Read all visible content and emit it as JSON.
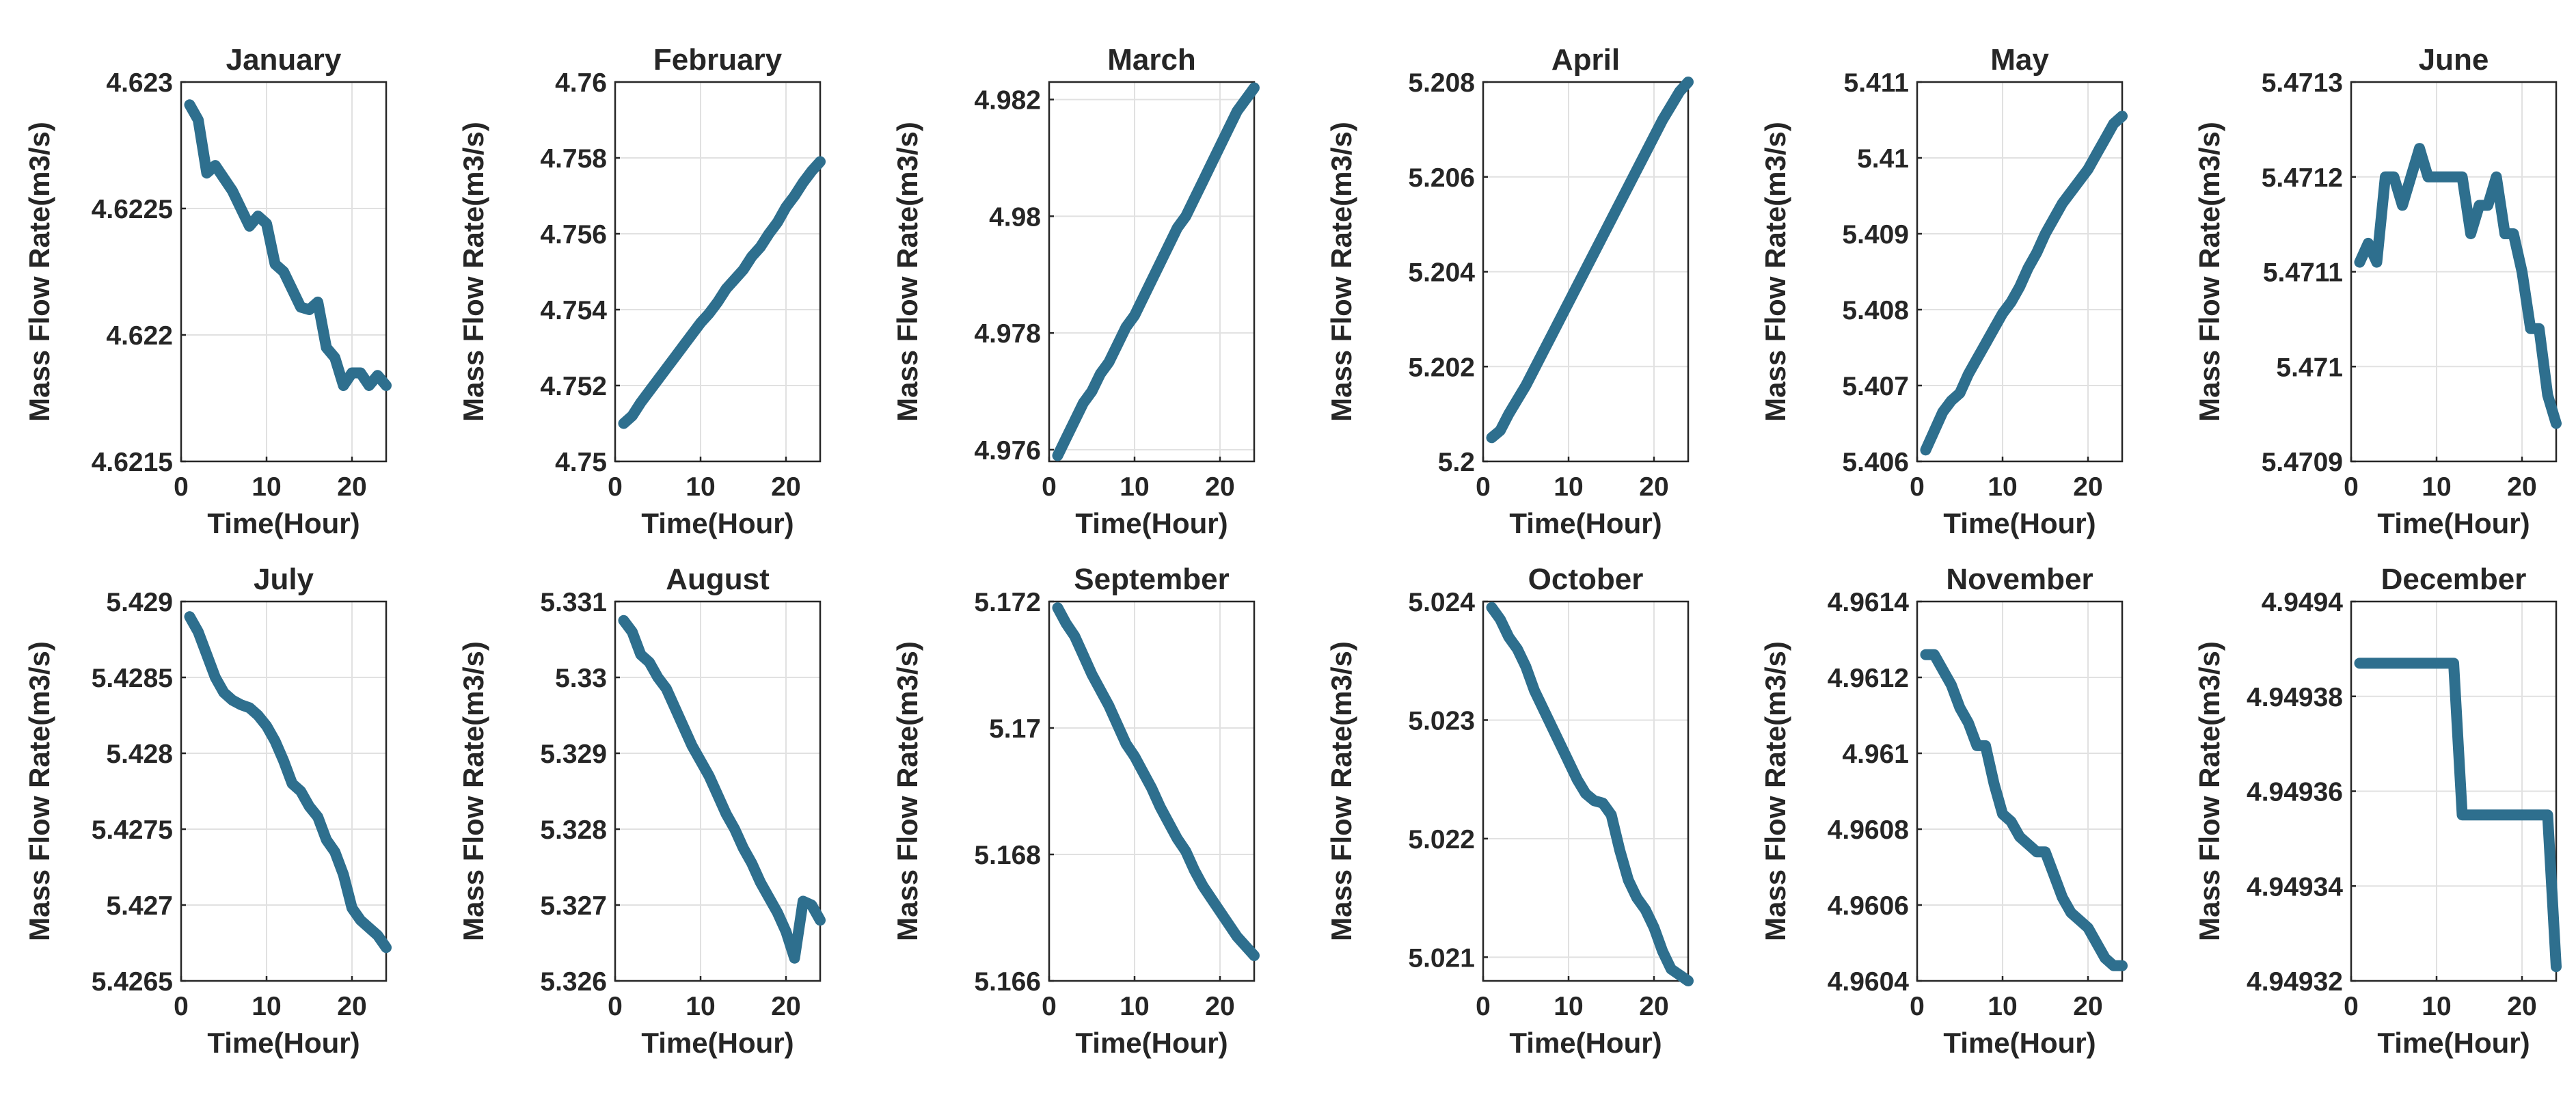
{
  "colors": {
    "line": "#2e6f8e",
    "axis": "#262626",
    "grid": "#e1e1e1"
  },
  "xlabel": "Time(Hour)",
  "ylabel": "Mass Flow Rate(m3/s)",
  "chart_data": [
    {
      "type": "line",
      "title": "January",
      "xlabel": "Time(Hour)",
      "ylabel": "Mass Flow Rate(m3/s)",
      "grid": true,
      "xlim": [
        0,
        24
      ],
      "xticks": [
        0,
        10,
        20
      ],
      "xtick_labels": [
        "0",
        "10",
        "20"
      ],
      "ylim": [
        4.6215,
        4.623
      ],
      "yticks": [
        4.6215,
        4.622,
        4.6225,
        4.623
      ],
      "ytick_labels": [
        "4.6215",
        "4.622",
        "4.6225",
        "4.623"
      ],
      "x": [
        1,
        2,
        3,
        4,
        5,
        6,
        7,
        8,
        9,
        10,
        11,
        12,
        13,
        14,
        15,
        16,
        17,
        18,
        19,
        20,
        21,
        22,
        23,
        24
      ],
      "y": [
        4.62291,
        4.62285,
        4.62264,
        4.62267,
        4.62262,
        4.62257,
        4.6225,
        4.62243,
        4.62247,
        4.62244,
        4.62228,
        4.62225,
        4.62218,
        4.62211,
        4.6221,
        4.62213,
        4.62195,
        4.62191,
        4.6218,
        4.62185,
        4.62185,
        4.6218,
        4.62184,
        4.6218
      ]
    },
    {
      "type": "line",
      "title": "February",
      "xlabel": "Time(Hour)",
      "ylabel": "Mass Flow Rate(m3/s)",
      "grid": true,
      "xlim": [
        0,
        24
      ],
      "xticks": [
        0,
        10,
        20
      ],
      "xtick_labels": [
        "0",
        "10",
        "20"
      ],
      "ylim": [
        4.75,
        4.76
      ],
      "yticks": [
        4.75,
        4.752,
        4.754,
        4.756,
        4.758,
        4.76
      ],
      "ytick_labels": [
        "4.75",
        "4.752",
        "4.754",
        "4.756",
        "4.758",
        "4.76"
      ],
      "x": [
        1,
        2,
        3,
        4,
        5,
        6,
        7,
        8,
        9,
        10,
        11,
        12,
        13,
        14,
        15,
        16,
        17,
        18,
        19,
        20,
        21,
        22,
        23,
        24
      ],
      "y": [
        4.751,
        4.7512,
        4.75155,
        4.75185,
        4.75215,
        4.75245,
        4.75275,
        4.75305,
        4.75335,
        4.75365,
        4.7539,
        4.7542,
        4.75455,
        4.7548,
        4.75505,
        4.7554,
        4.75565,
        4.756,
        4.7563,
        4.7567,
        4.757,
        4.75735,
        4.75765,
        4.7579
      ]
    },
    {
      "type": "line",
      "title": "March",
      "xlabel": "Time(Hour)",
      "ylabel": "Mass Flow Rate(m3/s)",
      "grid": true,
      "xlim": [
        0,
        24
      ],
      "xticks": [
        0,
        10,
        20
      ],
      "xtick_labels": [
        "0",
        "10",
        "20"
      ],
      "ylim": [
        4.9758,
        4.9823
      ],
      "yticks": [
        4.976,
        4.978,
        4.98,
        4.982
      ],
      "ytick_labels": [
        "4.976",
        "4.978",
        "4.98",
        "4.982"
      ],
      "x": [
        1,
        2,
        3,
        4,
        5,
        6,
        7,
        8,
        9,
        10,
        11,
        12,
        13,
        14,
        15,
        16,
        17,
        18,
        19,
        20,
        21,
        22,
        23,
        24
      ],
      "y": [
        4.9759,
        4.9762,
        4.9765,
        4.9768,
        4.977,
        4.9773,
        4.9775,
        4.9778,
        4.9781,
        4.9783,
        4.9786,
        4.9789,
        4.9792,
        4.9795,
        4.9798,
        4.98,
        4.9803,
        4.9806,
        4.9809,
        4.9812,
        4.9815,
        4.9818,
        4.982,
        4.9822
      ]
    },
    {
      "type": "line",
      "title": "April",
      "xlabel": "Time(Hour)",
      "ylabel": "Mass Flow Rate(m3/s)",
      "grid": true,
      "xlim": [
        0,
        24
      ],
      "xticks": [
        0,
        10,
        20
      ],
      "xtick_labels": [
        "0",
        "10",
        "20"
      ],
      "ylim": [
        5.2,
        5.208
      ],
      "yticks": [
        5.2,
        5.202,
        5.204,
        5.206,
        5.208
      ],
      "ytick_labels": [
        "5.2",
        "5.202",
        "5.204",
        "5.206",
        "5.208"
      ],
      "x": [
        1,
        2,
        3,
        4,
        5,
        6,
        7,
        8,
        9,
        10,
        11,
        12,
        13,
        14,
        15,
        16,
        17,
        18,
        19,
        20,
        21,
        22,
        23,
        24
      ],
      "y": [
        5.2005,
        5.20065,
        5.201,
        5.2013,
        5.2016,
        5.20195,
        5.2023,
        5.20265,
        5.203,
        5.20335,
        5.2037,
        5.20405,
        5.2044,
        5.20475,
        5.2051,
        5.20545,
        5.2058,
        5.20615,
        5.2065,
        5.20685,
        5.2072,
        5.2075,
        5.2078,
        5.208
      ]
    },
    {
      "type": "line",
      "title": "May",
      "xlabel": "Time(Hour)",
      "ylabel": "Mass Flow Rate(m3/s)",
      "grid": true,
      "xlim": [
        0,
        24
      ],
      "xticks": [
        0,
        10,
        20
      ],
      "xtick_labels": [
        "0",
        "10",
        "20"
      ],
      "ylim": [
        5.406,
        5.411
      ],
      "yticks": [
        5.406,
        5.407,
        5.408,
        5.409,
        5.41,
        5.411
      ],
      "ytick_labels": [
        "5.406",
        "5.407",
        "5.408",
        "5.409",
        "5.41",
        "5.411"
      ],
      "x": [
        1,
        2,
        3,
        4,
        5,
        6,
        7,
        8,
        9,
        10,
        11,
        12,
        13,
        14,
        15,
        16,
        17,
        18,
        19,
        20,
        21,
        22,
        23,
        24
      ],
      "y": [
        5.40615,
        5.4064,
        5.40665,
        5.4068,
        5.4069,
        5.40715,
        5.40735,
        5.40755,
        5.40775,
        5.40795,
        5.4081,
        5.4083,
        5.40855,
        5.40875,
        5.409,
        5.4092,
        5.4094,
        5.40955,
        5.4097,
        5.40985,
        5.41005,
        5.41025,
        5.41045,
        5.41055
      ]
    },
    {
      "type": "line",
      "title": "June",
      "xlabel": "Time(Hour)",
      "ylabel": "Mass Flow Rate(m3/s)",
      "grid": true,
      "xlim": [
        0,
        24
      ],
      "xticks": [
        0,
        10,
        20
      ],
      "xtick_labels": [
        "0",
        "10",
        "20"
      ],
      "ylim": [
        5.4709,
        5.4713
      ],
      "yticks": [
        5.4709,
        5.471,
        5.4711,
        5.4712,
        5.4713
      ],
      "ytick_labels": [
        "5.4709",
        "5.471",
        "5.4711",
        "5.4712",
        "5.4713"
      ],
      "x": [
        1,
        2,
        3,
        4,
        5,
        6,
        7,
        8,
        9,
        10,
        11,
        12,
        13,
        14,
        15,
        16,
        17,
        18,
        19,
        20,
        21,
        22,
        23,
        24
      ],
      "y": [
        5.47111,
        5.47113,
        5.47111,
        5.4712,
        5.4712,
        5.47117,
        5.4712,
        5.47123,
        5.4712,
        5.4712,
        5.4712,
        5.4712,
        5.4712,
        5.47114,
        5.47117,
        5.47117,
        5.4712,
        5.47114,
        5.47114,
        5.4711,
        5.47104,
        5.47104,
        5.47097,
        5.47094
      ]
    },
    {
      "type": "line",
      "title": "July",
      "xlabel": "Time(Hour)",
      "ylabel": "Mass Flow Rate(m3/s)",
      "grid": true,
      "xlim": [
        0,
        24
      ],
      "xticks": [
        0,
        10,
        20
      ],
      "xtick_labels": [
        "0",
        "10",
        "20"
      ],
      "ylim": [
        5.4265,
        5.429
      ],
      "yticks": [
        5.4265,
        5.427,
        5.4275,
        5.428,
        5.4285,
        5.429
      ],
      "ytick_labels": [
        "5.4265",
        "5.427",
        "5.4275",
        "5.428",
        "5.4285",
        "5.429"
      ],
      "x": [
        1,
        2,
        3,
        4,
        5,
        6,
        7,
        8,
        9,
        10,
        11,
        12,
        13,
        14,
        15,
        16,
        17,
        18,
        19,
        20,
        21,
        22,
        23,
        24
      ],
      "y": [
        5.4289,
        5.4288,
        5.42865,
        5.4285,
        5.4284,
        5.42835,
        5.42832,
        5.4283,
        5.42825,
        5.42818,
        5.42808,
        5.42795,
        5.4278,
        5.42775,
        5.42765,
        5.42758,
        5.42743,
        5.42735,
        5.4272,
        5.42698,
        5.4269,
        5.42685,
        5.4268,
        5.42672
      ]
    },
    {
      "type": "line",
      "title": "August",
      "xlabel": "Time(Hour)",
      "ylabel": "Mass Flow Rate(m3/s)",
      "grid": true,
      "xlim": [
        0,
        24
      ],
      "xticks": [
        0,
        10,
        20
      ],
      "xtick_labels": [
        "0",
        "10",
        "20"
      ],
      "ylim": [
        5.326,
        5.331
      ],
      "yticks": [
        5.326,
        5.327,
        5.328,
        5.329,
        5.33,
        5.331
      ],
      "ytick_labels": [
        "5.326",
        "5.327",
        "5.328",
        "5.329",
        "5.33",
        "5.331"
      ],
      "x": [
        1,
        2,
        3,
        4,
        5,
        6,
        7,
        8,
        9,
        10,
        11,
        12,
        13,
        14,
        15,
        16,
        17,
        18,
        19,
        20,
        21,
        22,
        23,
        24
      ],
      "y": [
        5.33075,
        5.3306,
        5.3303,
        5.3302,
        5.33,
        5.32985,
        5.3296,
        5.32935,
        5.3291,
        5.3289,
        5.3287,
        5.32845,
        5.3282,
        5.328,
        5.32775,
        5.32755,
        5.3273,
        5.3271,
        5.3269,
        5.32665,
        5.3263,
        5.32705,
        5.327,
        5.3268
      ]
    },
    {
      "type": "line",
      "title": "September",
      "xlabel": "Time(Hour)",
      "ylabel": "Mass Flow Rate(m3/s)",
      "grid": true,
      "xlim": [
        0,
        24
      ],
      "xticks": [
        0,
        10,
        20
      ],
      "xtick_labels": [
        "0",
        "10",
        "20"
      ],
      "ylim": [
        5.166,
        5.172
      ],
      "yticks": [
        5.166,
        5.168,
        5.17,
        5.172
      ],
      "ytick_labels": [
        "5.166",
        "5.168",
        "5.17",
        "5.172"
      ],
      "x": [
        1,
        2,
        3,
        4,
        5,
        6,
        7,
        8,
        9,
        10,
        11,
        12,
        13,
        14,
        15,
        16,
        17,
        18,
        19,
        20,
        21,
        22,
        23,
        24
      ],
      "y": [
        5.1719,
        5.17165,
        5.17145,
        5.17115,
        5.17085,
        5.1706,
        5.17035,
        5.17005,
        5.16975,
        5.16955,
        5.1693,
        5.16905,
        5.16875,
        5.1685,
        5.16825,
        5.16805,
        5.16775,
        5.1675,
        5.1673,
        5.1671,
        5.1669,
        5.1667,
        5.16655,
        5.1664
      ]
    },
    {
      "type": "line",
      "title": "October",
      "xlabel": "Time(Hour)",
      "ylabel": "Mass Flow Rate(m3/s)",
      "grid": true,
      "xlim": [
        0,
        24
      ],
      "xticks": [
        0,
        10,
        20
      ],
      "xtick_labels": [
        "0",
        "10",
        "20"
      ],
      "ylim": [
        5.0208,
        5.024
      ],
      "yticks": [
        5.021,
        5.022,
        5.023,
        5.024
      ],
      "ytick_labels": [
        "5.021",
        "5.022",
        "5.023",
        "5.024"
      ],
      "x": [
        1,
        2,
        3,
        4,
        5,
        6,
        7,
        8,
        9,
        10,
        11,
        12,
        13,
        14,
        15,
        16,
        17,
        18,
        19,
        20,
        21,
        22,
        23,
        24
      ],
      "y": [
        5.02395,
        5.02385,
        5.0237,
        5.0236,
        5.02345,
        5.02325,
        5.0231,
        5.02295,
        5.0228,
        5.02265,
        5.0225,
        5.02238,
        5.02232,
        5.0223,
        5.0222,
        5.0219,
        5.02165,
        5.0215,
        5.0214,
        5.02125,
        5.02105,
        5.0209,
        5.02085,
        5.0208
      ]
    },
    {
      "type": "line",
      "title": "November",
      "xlabel": "Time(Hour)",
      "ylabel": "Mass Flow Rate(m3/s)",
      "grid": true,
      "xlim": [
        0,
        24
      ],
      "xticks": [
        0,
        10,
        20
      ],
      "xtick_labels": [
        "0",
        "10",
        "20"
      ],
      "ylim": [
        4.9604,
        4.9614
      ],
      "yticks": [
        4.9604,
        4.9606,
        4.9608,
        4.961,
        4.9612,
        4.9614
      ],
      "ytick_labels": [
        "4.9604",
        "4.9606",
        "4.9608",
        "4.961",
        "4.9612",
        "4.9614"
      ],
      "x": [
        1,
        2,
        3,
        4,
        5,
        6,
        7,
        8,
        9,
        10,
        11,
        12,
        13,
        14,
        15,
        16,
        17,
        18,
        19,
        20,
        21,
        22,
        23,
        24
      ],
      "y": [
        4.96126,
        4.96126,
        4.96122,
        4.96118,
        4.96112,
        4.96108,
        4.96102,
        4.96102,
        4.96092,
        4.96084,
        4.96082,
        4.96078,
        4.96076,
        4.96074,
        4.96074,
        4.96068,
        4.96062,
        4.96058,
        4.96056,
        4.96054,
        4.9605,
        4.96046,
        4.96044,
        4.96044
      ]
    },
    {
      "type": "line",
      "title": "December",
      "xlabel": "Time(Hour)",
      "ylabel": "Mass Flow Rate(m3/s)",
      "grid": true,
      "xlim": [
        0,
        24
      ],
      "xticks": [
        0,
        10,
        20
      ],
      "xtick_labels": [
        "0",
        "10",
        "20"
      ],
      "ylim": [
        4.94932,
        4.9494
      ],
      "yticks": [
        4.94932,
        4.94934,
        4.94936,
        4.94938,
        4.9494
      ],
      "ytick_labels": [
        "4.94932",
        "4.94934",
        "4.94936",
        "4.94938",
        "4.9494"
      ],
      "x": [
        1,
        2,
        3,
        4,
        5,
        6,
        7,
        8,
        9,
        10,
        11,
        12,
        13,
        14,
        15,
        16,
        17,
        18,
        19,
        20,
        21,
        22,
        23,
        24
      ],
      "y": [
        4.949387,
        4.949387,
        4.949387,
        4.949387,
        4.949387,
        4.949387,
        4.949387,
        4.949387,
        4.949387,
        4.949387,
        4.949387,
        4.949387,
        4.949355,
        4.949355,
        4.949355,
        4.949355,
        4.949355,
        4.949355,
        4.949355,
        4.949355,
        4.949355,
        4.949355,
        4.949355,
        4.949323
      ]
    }
  ]
}
